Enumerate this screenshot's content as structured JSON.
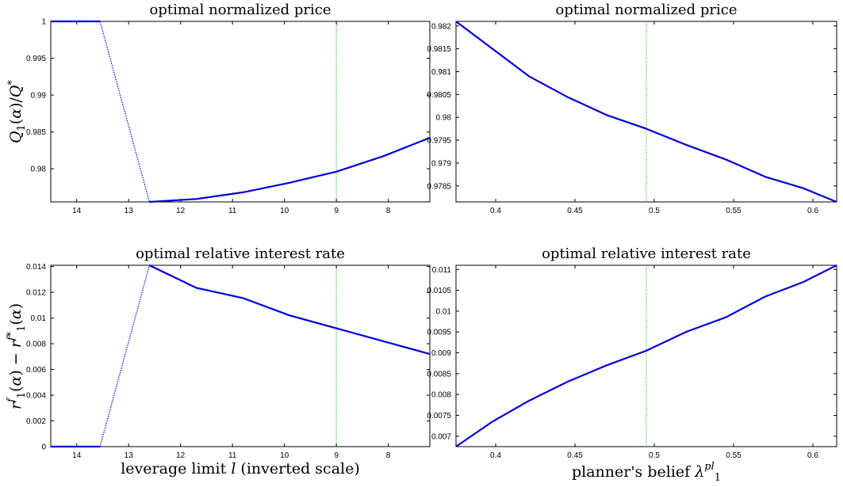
{
  "colors": {
    "line": "#0000d8",
    "marker_line": "#33dd33",
    "axis": "#000000",
    "background": "#ffffff"
  },
  "chart_data": [
    {
      "id": "tl",
      "type": "line",
      "title": "optimal normalized price",
      "ylabel": "Q_1(α)/Q^*",
      "xlabel": "",
      "x_inverted": true,
      "xlim": [
        14.5,
        7.2
      ],
      "ylim": [
        0.9755,
        1.0
      ],
      "xticks": [
        "14",
        "13",
        "12",
        "11",
        "10",
        "9",
        "8"
      ],
      "yticks": [
        "0.98",
        "0.985",
        "0.99",
        "0.995",
        "1"
      ],
      "vline_x": 9,
      "series_solid": [
        {
          "x": [
            14.5,
            13.55
          ],
          "y": [
            1.0,
            1.0
          ]
        },
        {
          "x": [
            12.6,
            11.7,
            10.8,
            9.9,
            9.0,
            8.1,
            7.2
          ],
          "y": [
            0.9755,
            0.9759,
            0.9768,
            0.9781,
            0.9796,
            0.9817,
            0.9842
          ]
        }
      ],
      "series_dotted": [
        {
          "x": [
            13.55,
            12.6
          ],
          "y": [
            1.0,
            0.9755
          ]
        }
      ]
    },
    {
      "id": "tr",
      "type": "line",
      "title": "optimal normalized price",
      "ylabel": "",
      "xlabel": "",
      "x_inverted": false,
      "xlim": [
        0.375,
        0.615
      ],
      "ylim": [
        0.97815,
        0.9821
      ],
      "xticks": [
        "0.4",
        "0.45",
        "0.5",
        "0.55",
        "0.6"
      ],
      "yticks": [
        "0.9785",
        "0.979",
        "0.9795",
        "0.98",
        "0.9805",
        "0.981",
        "0.9815",
        "0.982"
      ],
      "vline_x": 0.495,
      "series_solid": [
        {
          "x": [
            0.375,
            0.398,
            0.421,
            0.445,
            0.47,
            0.495,
            0.52,
            0.545,
            0.57,
            0.594,
            0.615
          ],
          "y": [
            0.9821,
            0.9815,
            0.9809,
            0.98045,
            0.98005,
            0.97975,
            0.9794,
            0.97908,
            0.9787,
            0.97845,
            0.97815
          ]
        }
      ],
      "series_dotted": []
    },
    {
      "id": "bl",
      "type": "line",
      "title": "optimal relative interest rate",
      "ylabel": "r_1^f(α) − r_1^{f*}(α)",
      "xlabel": "leverage limit l (inverted scale)",
      "x_inverted": true,
      "xlim": [
        14.5,
        7.2
      ],
      "ylim": [
        0.0,
        0.0141
      ],
      "xticks": [
        "14",
        "13",
        "12",
        "11",
        "10",
        "9",
        "8"
      ],
      "yticks": [
        "0",
        "0.002",
        "0.004",
        "0.006",
        "0.008",
        "0.01",
        "0.012",
        "0.014"
      ],
      "vline_x": 9,
      "series_solid": [
        {
          "x": [
            14.5,
            13.55
          ],
          "y": [
            0.0,
            0.0
          ]
        },
        {
          "x": [
            12.6,
            11.7,
            10.8,
            9.9,
            9.0,
            8.1,
            7.2
          ],
          "y": [
            0.0141,
            0.01235,
            0.01155,
            0.0102,
            0.0092,
            0.0082,
            0.0072
          ]
        }
      ],
      "series_dotted": [
        {
          "x": [
            13.55,
            12.6
          ],
          "y": [
            0.0,
            0.0141
          ]
        }
      ]
    },
    {
      "id": "br",
      "type": "line",
      "title": "optimal relative interest rate",
      "ylabel": "",
      "xlabel": "planner's belief λ_1^{pl}",
      "x_inverted": false,
      "xlim": [
        0.375,
        0.615
      ],
      "ylim": [
        0.00675,
        0.0111
      ],
      "xticks": [
        "0.4",
        "0.45",
        "0.5",
        "0.55",
        "0.6"
      ],
      "yticks": [
        "0.007",
        "0.0075",
        "0.008",
        "0.0085",
        "0.009",
        "0.0095",
        "0.01",
        "0.0105",
        "0.011"
      ],
      "vline_x": 0.495,
      "series_solid": [
        {
          "x": [
            0.375,
            0.398,
            0.421,
            0.445,
            0.47,
            0.495,
            0.52,
            0.545,
            0.57,
            0.594,
            0.615
          ],
          "y": [
            0.00675,
            0.00735,
            0.00785,
            0.0083,
            0.0087,
            0.00905,
            0.0095,
            0.00985,
            0.01035,
            0.0107,
            0.0111
          ]
        }
      ],
      "series_dotted": []
    }
  ]
}
